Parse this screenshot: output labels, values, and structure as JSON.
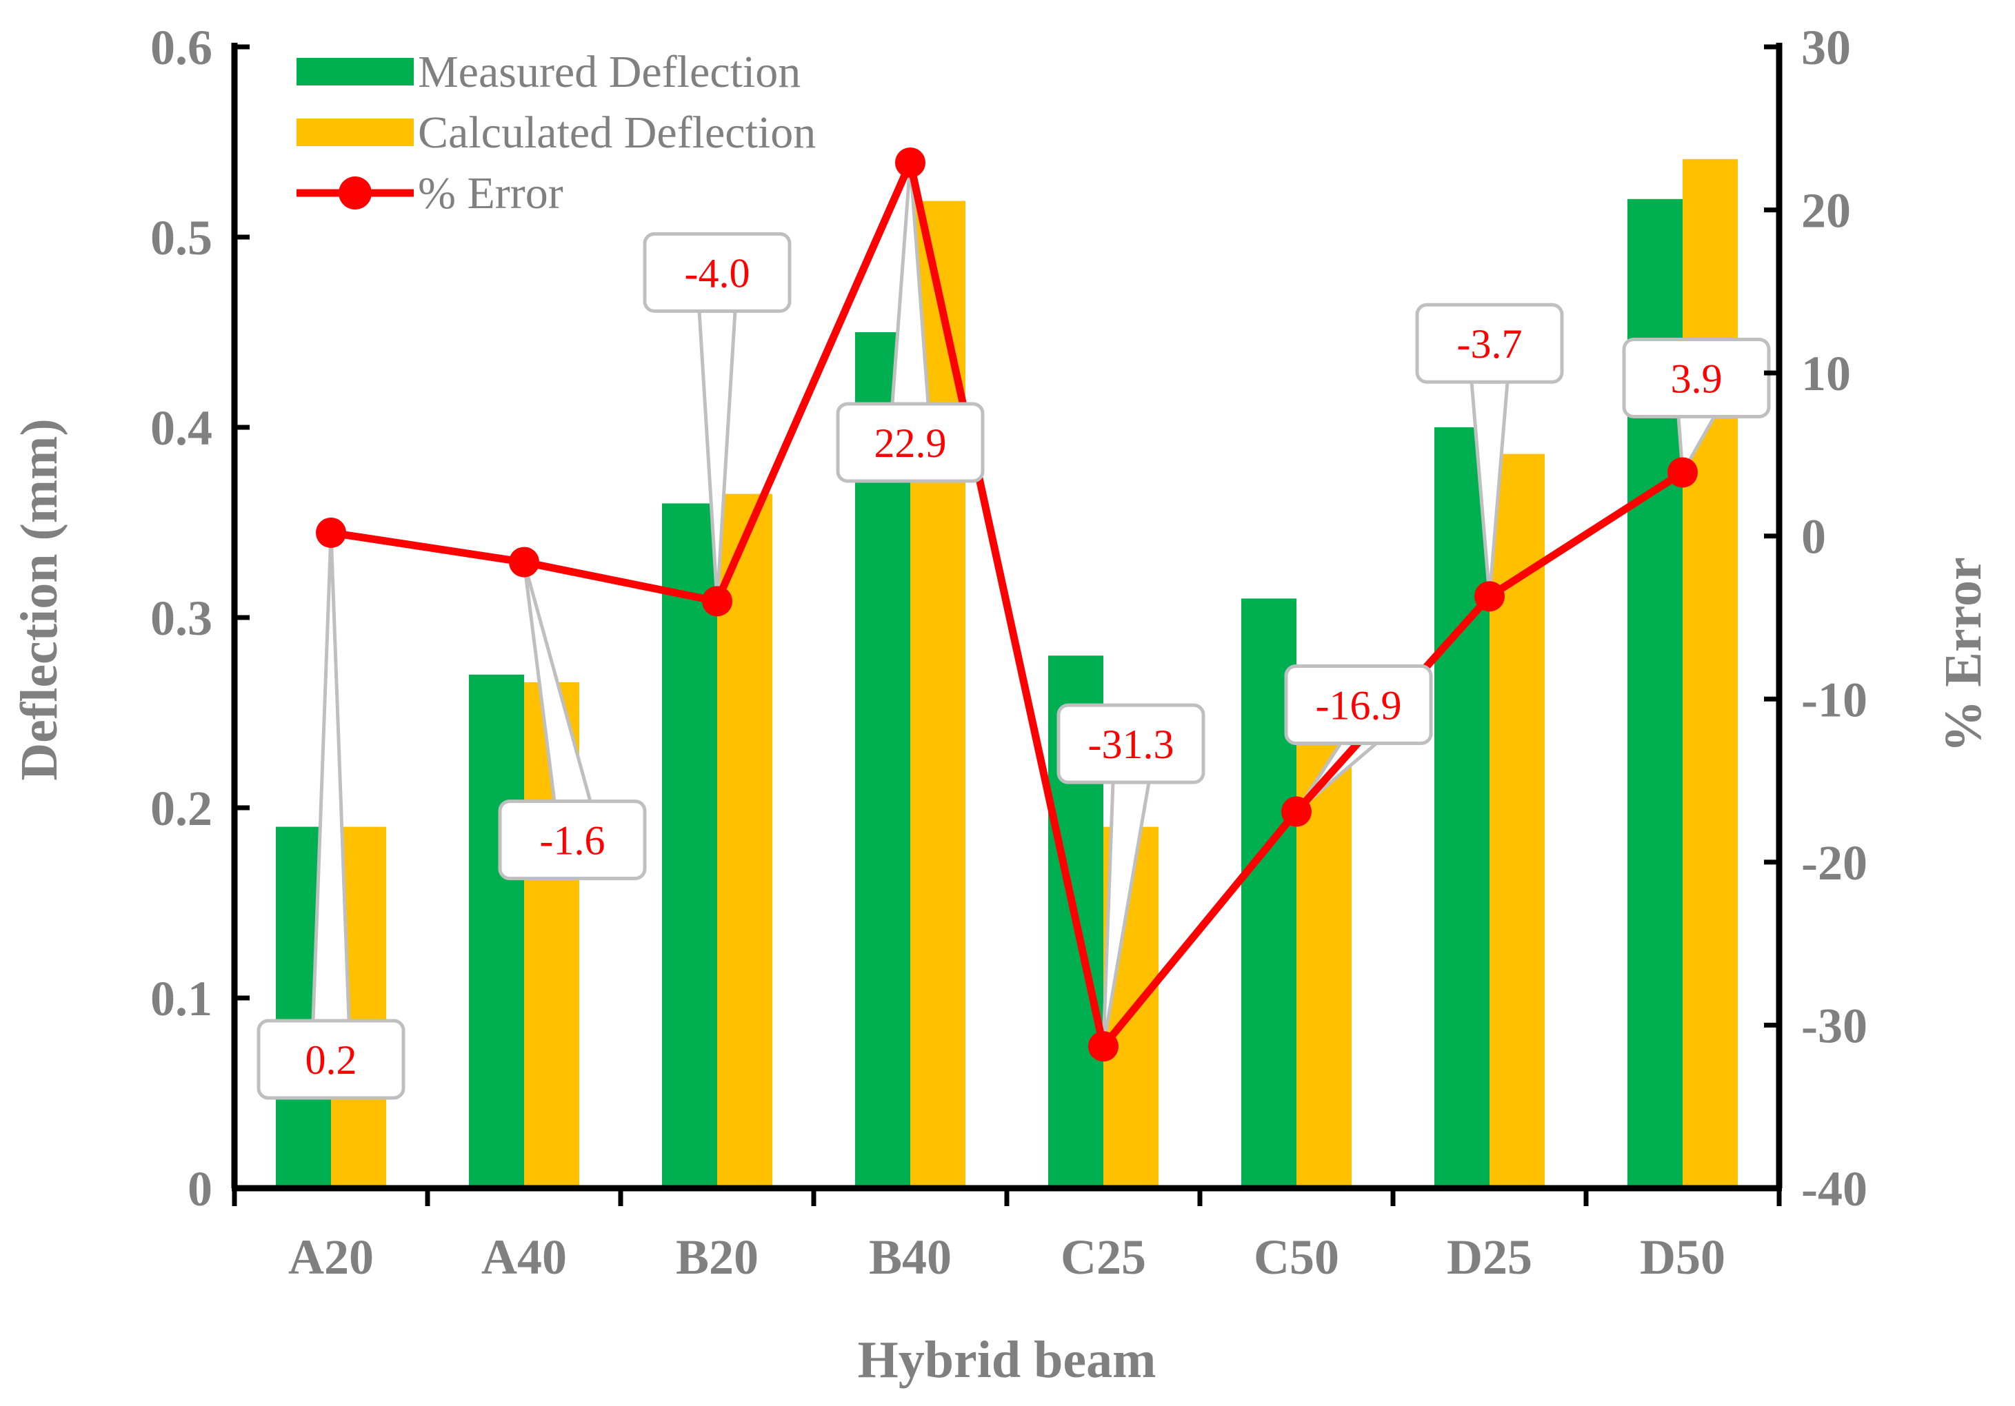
{
  "chart_data": {
    "type": "bar",
    "categories": [
      "A20",
      "A40",
      "B20",
      "B40",
      "C25",
      "C50",
      "D25",
      "D50"
    ],
    "series": [
      {
        "name": "Measured Deflection",
        "axis": "left",
        "type": "bar",
        "color": "#00b050",
        "values": [
          0.19,
          0.27,
          0.36,
          0.45,
          0.28,
          0.31,
          0.4,
          0.52
        ]
      },
      {
        "name": "Calculated Deflection",
        "axis": "left",
        "type": "bar",
        "color": "#ffc000",
        "values": [
          0.19,
          0.266,
          0.365,
          0.519,
          0.19,
          0.24,
          0.386,
          0.541
        ]
      },
      {
        "name": "% Error",
        "axis": "right",
        "type": "line",
        "color": "#ff0000",
        "values": [
          0.2,
          -1.6,
          -4.0,
          22.9,
          -31.3,
          -16.9,
          -3.7,
          3.9
        ],
        "data_labels": [
          "0.2",
          "-1.6",
          "-4.0",
          "22.9",
          "-31.3",
          "-16.9",
          "-3.7",
          "3.9"
        ]
      }
    ],
    "xlabel": "Hybrid beam",
    "ylabel": "Deflection (mm)",
    "y2label": "% Error",
    "ylim": [
      0,
      0.6
    ],
    "y2lim": [
      -40,
      30
    ],
    "yticks": [
      "0",
      "0.1",
      "0.2",
      "0.3",
      "0.4",
      "0.5",
      "0.6"
    ],
    "y2ticks": [
      "-40",
      "-30",
      "-20",
      "-10",
      "0",
      "10",
      "20",
      "30"
    ],
    "grid": false,
    "legend_position": "top-left"
  }
}
